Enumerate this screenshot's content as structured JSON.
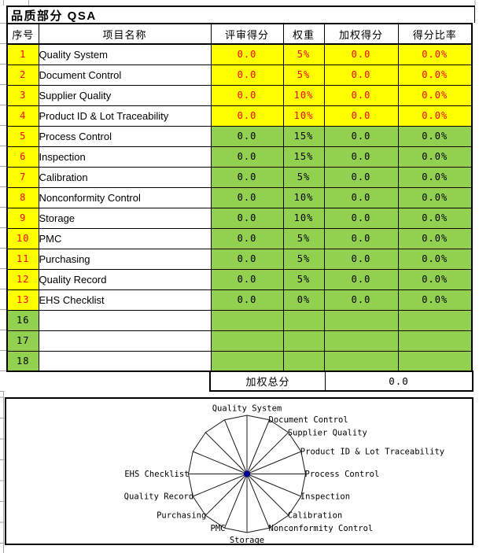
{
  "title": "品质部分 QSA",
  "sheet": {
    "headers": [
      "序号",
      "项目名称",
      "评审得分",
      "权重",
      "加权得分",
      "得分比率"
    ],
    "rows": [
      {
        "no": "1",
        "name": "Quality System",
        "score": "0.0",
        "weight": "5%",
        "weighted": "0.0",
        "ratio": "0.0%",
        "zone": "yellow"
      },
      {
        "no": "2",
        "name": "Document Control",
        "score": "0.0",
        "weight": "5%",
        "weighted": "0.0",
        "ratio": "0.0%",
        "zone": "yellow"
      },
      {
        "no": "3",
        "name": "Supplier Quality",
        "score": "0.0",
        "weight": "10%",
        "weighted": "0.0",
        "ratio": "0.0%",
        "zone": "yellow"
      },
      {
        "no": "4",
        "name": "Product ID & Lot Traceability",
        "score": "0.0",
        "weight": "10%",
        "weighted": "0.0",
        "ratio": "0.0%",
        "zone": "yellow"
      },
      {
        "no": "5",
        "name": "Process Control",
        "score": "0.0",
        "weight": "15%",
        "weighted": "0.0",
        "ratio": "0.0%",
        "zone": "green"
      },
      {
        "no": "6",
        "name": "Inspection",
        "score": "0.0",
        "weight": "15%",
        "weighted": "0.0",
        "ratio": "0.0%",
        "zone": "green"
      },
      {
        "no": "7",
        "name": "Calibration",
        "score": "0.0",
        "weight": "5%",
        "weighted": "0.0",
        "ratio": "0.0%",
        "zone": "green"
      },
      {
        "no": "8",
        "name": "Nonconformity Control",
        "score": "0.0",
        "weight": "10%",
        "weighted": "0.0",
        "ratio": "0.0%",
        "zone": "green"
      },
      {
        "no": "9",
        "name": "Storage",
        "score": "0.0",
        "weight": "10%",
        "weighted": "0.0",
        "ratio": "0.0%",
        "zone": "green"
      },
      {
        "no": "10",
        "name": "PMC",
        "score": "0.0",
        "weight": "5%",
        "weighted": "0.0",
        "ratio": "0.0%",
        "zone": "green"
      },
      {
        "no": "11",
        "name": "Purchasing",
        "score": "0.0",
        "weight": "5%",
        "weighted": "0.0",
        "ratio": "0.0%",
        "zone": "green"
      },
      {
        "no": "12",
        "name": "Quality Record",
        "score": "0.0",
        "weight": "5%",
        "weighted": "0.0",
        "ratio": "0.0%",
        "zone": "green"
      },
      {
        "no": "13",
        "name": "EHS Checklist",
        "score": "0.0",
        "weight": "0%",
        "weighted": "0.0",
        "ratio": "0.0%",
        "zone": "green"
      },
      {
        "no": "16",
        "name": "",
        "score": "",
        "weight": "",
        "weighted": "",
        "ratio": "",
        "zone": "blank"
      },
      {
        "no": "17",
        "name": "",
        "score": "",
        "weight": "",
        "weighted": "",
        "ratio": "",
        "zone": "blank"
      },
      {
        "no": "18",
        "name": "",
        "score": "",
        "weight": "",
        "weighted": "",
        "ratio": "",
        "zone": "blank"
      }
    ],
    "total_label": "加权总分",
    "total_value": "0.0"
  },
  "chart_data": {
    "type": "radar",
    "categories": [
      "Quality System",
      "Document Control",
      "Supplier Quality",
      "Product ID & Lot Traceability",
      "Process Control",
      "Inspection",
      "Calibration",
      "Nonconformity Control",
      "Storage",
      "PMC",
      "Purchasing",
      "Quality Record",
      "EHS Checklist",
      "",
      "",
      ""
    ],
    "series": [
      {
        "name": "",
        "values": [
          0,
          0,
          0,
          0,
          0,
          0,
          0,
          0,
          0,
          0,
          0,
          0,
          0,
          0,
          0,
          0
        ]
      }
    ],
    "axis_count": 16,
    "grid_on": true,
    "legend_position": "none",
    "marker_color": "#000099"
  },
  "colors": {
    "highlight_yellow": "#ffff00",
    "highlight_green": "#92d050",
    "score_text_red": "#ff0000",
    "border_black": "#000000",
    "gridline_gray": "#a6a6a6"
  }
}
